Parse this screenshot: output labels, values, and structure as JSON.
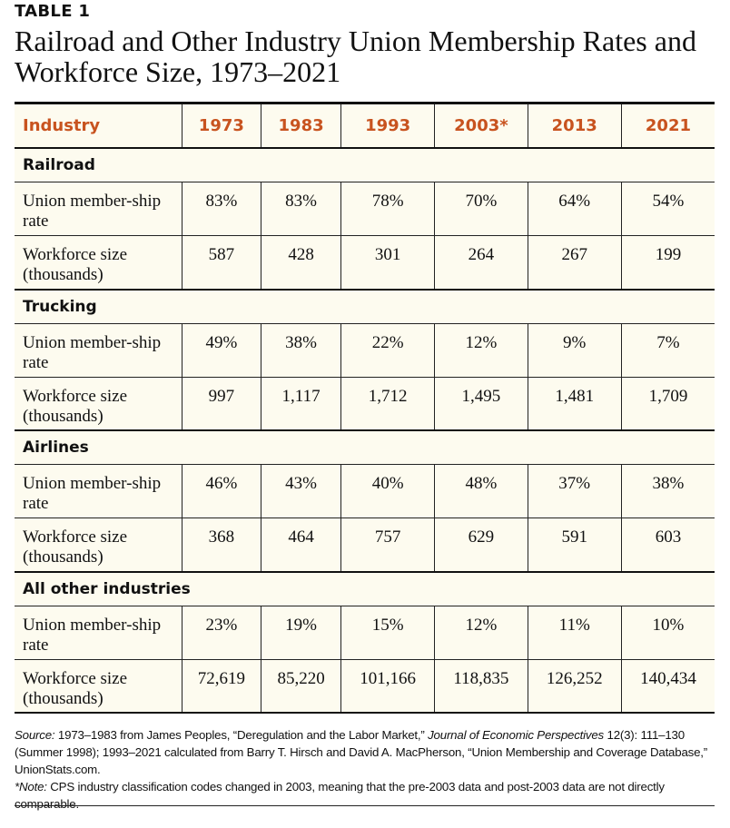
{
  "label": "TABLE 1",
  "title": "Railroad and Other Industry Union Membership Rates and Workforce Size, 1973–2021",
  "columns": [
    "Industry",
    "1973",
    "1983",
    "1993",
    "2003*",
    "2013",
    "2021"
  ],
  "row_labels": {
    "rate": "Union member-ship rate",
    "size": "Workforce size (thousands)"
  },
  "sections": [
    {
      "name": "Railroad",
      "rate": [
        "83%",
        "83%",
        "78%",
        "70%",
        "64%",
        "54%"
      ],
      "size": [
        "587",
        "428",
        "301",
        "264",
        "267",
        "199"
      ]
    },
    {
      "name": "Trucking",
      "rate": [
        "49%",
        "38%",
        "22%",
        "12%",
        "9%",
        "7%"
      ],
      "size": [
        "997",
        "1,117",
        "1,712",
        "1,495",
        "1,481",
        "1,709"
      ]
    },
    {
      "name": "Airlines",
      "rate": [
        "46%",
        "43%",
        "40%",
        "48%",
        "37%",
        "38%"
      ],
      "size": [
        "368",
        "464",
        "757",
        "629",
        "591",
        "603"
      ]
    },
    {
      "name": "All other industries",
      "rate": [
        "23%",
        "19%",
        "15%",
        "12%",
        "11%",
        "10%"
      ],
      "size": [
        "72,619",
        "85,220",
        "101,166",
        "118,835",
        "126,252",
        "140,434"
      ]
    }
  ],
  "footer": {
    "source_label": "Source:",
    "source_a": " 1973–1983 from James Peoples, “Deregulation and the Labor Market,” ",
    "journal": "Journal of Economic Perspectives",
    "source_b": " 12(3): 111–130 (Summer 1998); 1993–2021 calculated from Barry T. Hirsch and David A. MacPherson, “Union Membership and Coverage Database,” UnionStats.com.",
    "note_label": "*Note:",
    "note": " CPS industry classification codes changed in 2003, meaning that the pre-2003 data and post-2003 data are not directly comparable."
  },
  "colors": {
    "accent": "#c8531f",
    "background": "#fdfbef"
  }
}
